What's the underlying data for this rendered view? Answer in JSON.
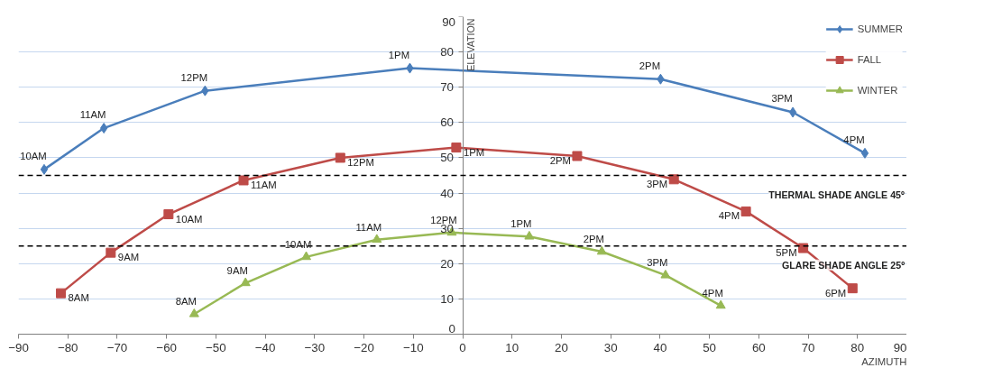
{
  "chart_data": {
    "type": "line",
    "xlabel": "AZIMUTH",
    "ylabel": "ELEVATION",
    "xlim": [
      -90,
      90
    ],
    "ylim": [
      0,
      90
    ],
    "xticks": [
      -90,
      -80,
      -70,
      -60,
      -50,
      -40,
      -30,
      -20,
      -10,
      0,
      10,
      20,
      30,
      40,
      50,
      60,
      70,
      80,
      90
    ],
    "yticks": [
      0,
      10,
      20,
      30,
      40,
      50,
      60,
      70,
      80,
      90
    ],
    "grid": "y",
    "legend": "top right",
    "line_style": "solid",
    "series": [
      {
        "name": "SUMMER",
        "color": "#4a7ebb",
        "marker": "diamond",
        "x": [
          -84.8,
          -72.7,
          -52.2,
          -10.7,
          40.1,
          66.9,
          81.5
        ],
        "values": [
          46.7,
          58.4,
          69,
          75.4,
          72.3,
          62.9,
          51.3
        ]
      },
      {
        "name": "FALL",
        "color": "#be4b48",
        "marker": "square",
        "x": [
          -81.4,
          -71.3,
          -59.6,
          -44.4,
          -24.8,
          -1.3,
          23.2,
          42.8,
          57.4,
          69,
          79
        ],
        "values": [
          11.6,
          23.1,
          34,
          43.6,
          50,
          52.9,
          50.5,
          43.9,
          34.8,
          24.4,
          13
        ]
      },
      {
        "name": "WINTER",
        "color": "#98b954",
        "marker": "triangle",
        "x": [
          -54.4,
          -44,
          -31.7,
          -17.4,
          -2.2,
          13.5,
          28.2,
          41.1,
          52.3
        ],
        "values": [
          5.7,
          14.5,
          21.9,
          26.8,
          28.8,
          27.7,
          23.4,
          16.7,
          8.1
        ]
      }
    ],
    "annotations": [
      {
        "text": "10AM",
        "x": -84.8,
        "y": 46.7
      },
      {
        "text": "11AM",
        "x": -72.7,
        "y": 58.4
      },
      {
        "text": "12PM",
        "x": -52.2,
        "y": 69
      },
      {
        "text": "1PM",
        "x": -10.7,
        "y": 75.4
      },
      {
        "text": "2PM",
        "x": 40.1,
        "y": 72.3
      },
      {
        "text": "3PM",
        "x": 66.9,
        "y": 62.9
      },
      {
        "text": "4PM",
        "x": 81.5,
        "y": 51.3
      },
      {
        "text": "8AM",
        "x": -81.4,
        "y": 11.6
      },
      {
        "text": "9AM",
        "x": -71.3,
        "y": 23.1
      },
      {
        "text": "10AM",
        "x": -59.6,
        "y": 34
      },
      {
        "text": "11AM",
        "x": -44.4,
        "y": 43.6
      },
      {
        "text": "12PM",
        "x": -24.8,
        "y": 50
      },
      {
        "text": "1PM",
        "x": -1.3,
        "y": 52.9
      },
      {
        "text": "2PM",
        "x": 23.2,
        "y": 50.5
      },
      {
        "text": "3PM",
        "x": 42.8,
        "y": 43.9
      },
      {
        "text": "4PM",
        "x": 57.4,
        "y": 34.8
      },
      {
        "text": "5PM",
        "x": 69,
        "y": 24.4
      },
      {
        "text": "6PM",
        "x": 79,
        "y": 13
      },
      {
        "text": "8AM",
        "x": -54.4,
        "y": 5.7
      },
      {
        "text": "9AM",
        "x": -44,
        "y": 14.5
      },
      {
        "text": "10AM",
        "x": -31.7,
        "y": 21.9
      },
      {
        "text": "11AM",
        "x": -17.4,
        "y": 26.8
      },
      {
        "text": "12PM",
        "x": -2.2,
        "y": 28.8
      },
      {
        "text": "1PM",
        "x": 13.5,
        "y": 27.7
      },
      {
        "text": "2PM",
        "x": 28.2,
        "y": 23.4
      },
      {
        "text": "3PM",
        "x": 41.1,
        "y": 16.7
      },
      {
        "text": "4PM",
        "x": 52.3,
        "y": 8.1
      }
    ],
    "ref_lines": [
      {
        "axis": "y",
        "value": 45,
        "label": "THERMAL SHADE ANGLE 45º",
        "color": "#000000",
        "line_style": "dashed"
      },
      {
        "axis": "y",
        "value": 25,
        "label": "GLARE SHADE ANGLE 25º",
        "color": "#000000",
        "line_style": "dashed"
      }
    ]
  }
}
